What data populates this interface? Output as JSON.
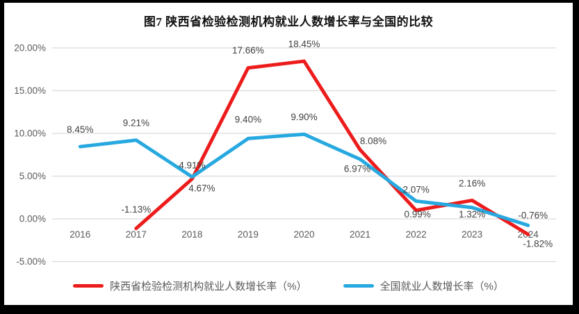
{
  "chart_data": {
    "type": "line",
    "title": "图7 陕西省检验检测机构就业人数增长率与全国的比较",
    "categories": [
      "2016",
      "2017",
      "2018",
      "2019",
      "2020",
      "2021",
      "2022",
      "2023",
      "2024"
    ],
    "y_axis": {
      "ticks": [
        {
          "label": "20.00%",
          "value": 20
        },
        {
          "label": "15.00%",
          "value": 15
        },
        {
          "label": "10.00%",
          "value": 10
        },
        {
          "label": "5.00%",
          "value": 5
        },
        {
          "label": "0.00%",
          "value": 0
        },
        {
          "label": "-5.00%",
          "value": -5
        }
      ],
      "range": [
        -5,
        20
      ]
    },
    "grid": "horizontal",
    "legend_position": "bottom",
    "colors": {
      "grid": "#d9d9d9",
      "axis_text": "#595959",
      "data_label_text": "#404040",
      "background": "#ffffff",
      "frame": "#000000"
    },
    "series": [
      {
        "name": "陕西省检验检测机构就业人数增长率（%）",
        "color": "#ed1c1c",
        "values": [
          null,
          -1.13,
          4.67,
          17.66,
          18.45,
          8.08,
          0.99,
          2.16,
          -1.82
        ],
        "labels": [
          "",
          "-1.13%",
          "4.67%",
          "17.66%",
          "18.45%",
          "8.08%",
          "0.99%",
          "2.16%",
          "-1.82%"
        ],
        "label_pos": [
          "",
          "above",
          "below",
          "above",
          "above",
          "above",
          "below",
          "above",
          "below"
        ],
        "label_dx": [
          0,
          0,
          14,
          0,
          0,
          19,
          2,
          0,
          14
        ],
        "label_dy": [
          0,
          -11,
          0,
          -9,
          -8,
          4,
          -8,
          -8,
          0
        ]
      },
      {
        "name": "全国就业人数增长率（%）",
        "color": "#27a9e0",
        "values": [
          8.45,
          9.21,
          4.91,
          9.4,
          9.9,
          6.97,
          2.07,
          1.32,
          -0.76
        ],
        "labels": [
          "8.45%",
          "9.21%",
          "4.91%",
          "9.40%",
          "9.90%",
          "6.97%",
          "2.07%",
          "1.32%",
          "-0.76%"
        ],
        "label_pos": [
          "above",
          "above",
          "above",
          "above",
          "above",
          "below",
          "above",
          "below",
          "above"
        ],
        "label_dx": [
          0,
          0,
          0,
          0,
          0,
          -4,
          0,
          0,
          7
        ],
        "label_dy": [
          -8,
          -8,
          0,
          -11,
          -8,
          0,
          0,
          -4,
          2
        ]
      }
    ]
  }
}
